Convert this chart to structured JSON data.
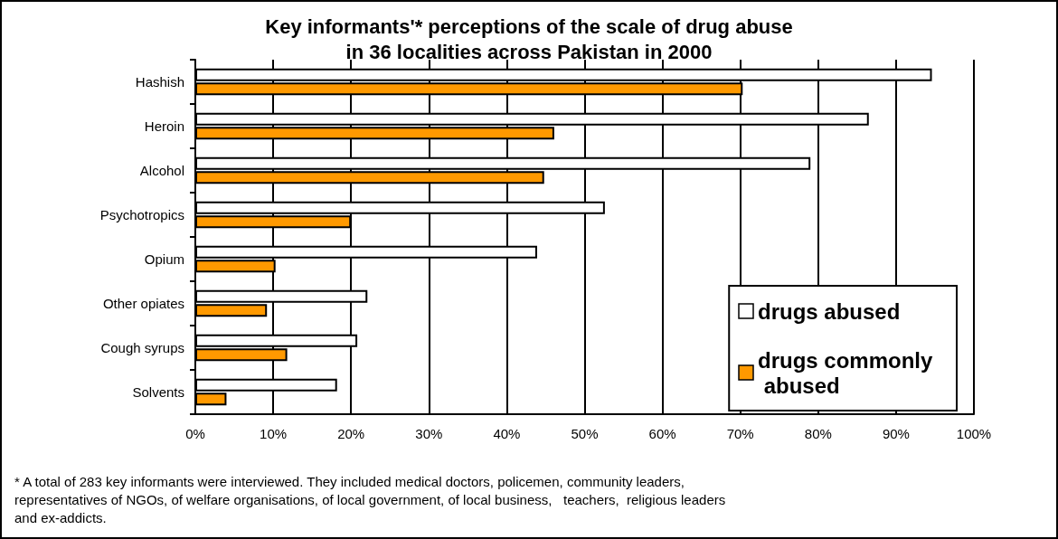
{
  "chart_data": {
    "type": "bar",
    "orientation": "horizontal",
    "title": "Key informants'* perceptions of the scale of drug abuse\nin 36 localities across Pakistan in 2000",
    "categories": [
      "Hashish",
      "Heroin",
      "Alcohol",
      "Psychotropics",
      "Opium",
      "Other opiates",
      "Cough syrups",
      "Solvents"
    ],
    "series": [
      {
        "name": "drugs abused",
        "color": "#ffffff",
        "values": [
          94.6,
          86.5,
          79.0,
          52.6,
          43.9,
          22.1,
          20.8,
          18.2
        ]
      },
      {
        "name": "drugs commonly abused",
        "color": "#ff9900",
        "values": [
          70.3,
          46.1,
          44.8,
          20.0,
          10.3,
          9.2,
          11.8,
          4.0
        ]
      }
    ],
    "xlim": [
      0,
      100
    ],
    "xticks": [
      {
        "value": 0,
        "label": "0%"
      },
      {
        "value": 10,
        "label": "10%"
      },
      {
        "value": 20,
        "label": "20%"
      },
      {
        "value": 30,
        "label": "30%"
      },
      {
        "value": 40,
        "label": "40%"
      },
      {
        "value": 50,
        "label": "50%"
      },
      {
        "value": 60,
        "label": "60%"
      },
      {
        "value": 70,
        "label": "70%"
      },
      {
        "value": 80,
        "label": "80%"
      },
      {
        "value": 90,
        "label": "90%"
      },
      {
        "value": 100,
        "label": "100%"
      }
    ],
    "grid": "x",
    "legend": "bottom right",
    "annotations": [
      "* A total of 283 key informants were interviewed. They included medical doctors, policemen, community leaders,\nrepresentatives of NGOs, of welfare organisations, of local government, of local business,   teachers,  religious leaders\nand ex-addicts."
    ]
  }
}
